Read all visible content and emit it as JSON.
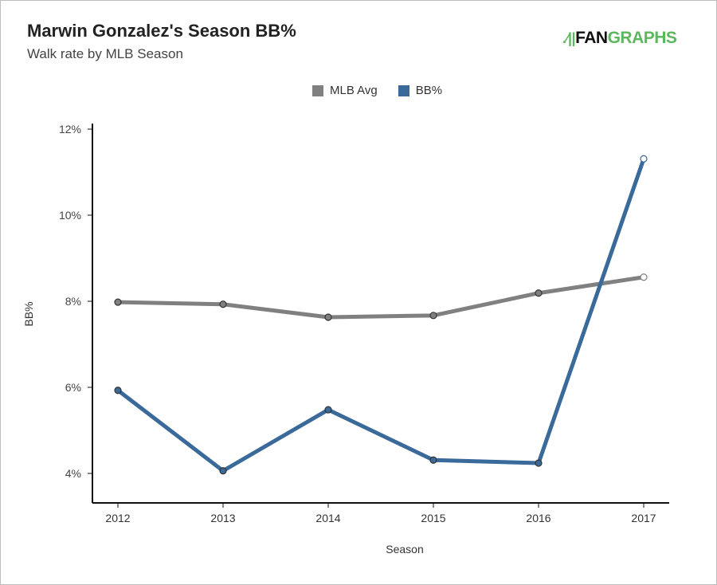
{
  "header": {
    "title": "Marwin Gonzalez's Season BB%",
    "subtitle": "Walk rate by MLB Season",
    "logo_text_fan": "FAN",
    "logo_text_graphs": "GRAPHS"
  },
  "chart_data": {
    "type": "line",
    "title": "Marwin Gonzalez's Season BB%",
    "subtitle": "Walk rate by MLB Season",
    "xlabel": "Season",
    "ylabel": "BB%",
    "x": [
      "2012",
      "2013",
      "2014",
      "2015",
      "2016",
      "2017"
    ],
    "ylim": [
      3.3,
      12.1
    ],
    "yticks": [
      4,
      6,
      8,
      10,
      12
    ],
    "ytick_labels": [
      "4%",
      "6%",
      "8%",
      "10%",
      "12%"
    ],
    "legend_position": "top-center",
    "grid": false,
    "series": [
      {
        "name": "MLB Avg",
        "color": "#808080",
        "values": [
          7.98,
          7.93,
          7.63,
          7.67,
          8.19,
          8.56
        ]
      },
      {
        "name": "BB%",
        "color": "#3a6a9a",
        "values": [
          5.93,
          4.06,
          5.48,
          4.31,
          4.24,
          11.31
        ]
      }
    ]
  }
}
